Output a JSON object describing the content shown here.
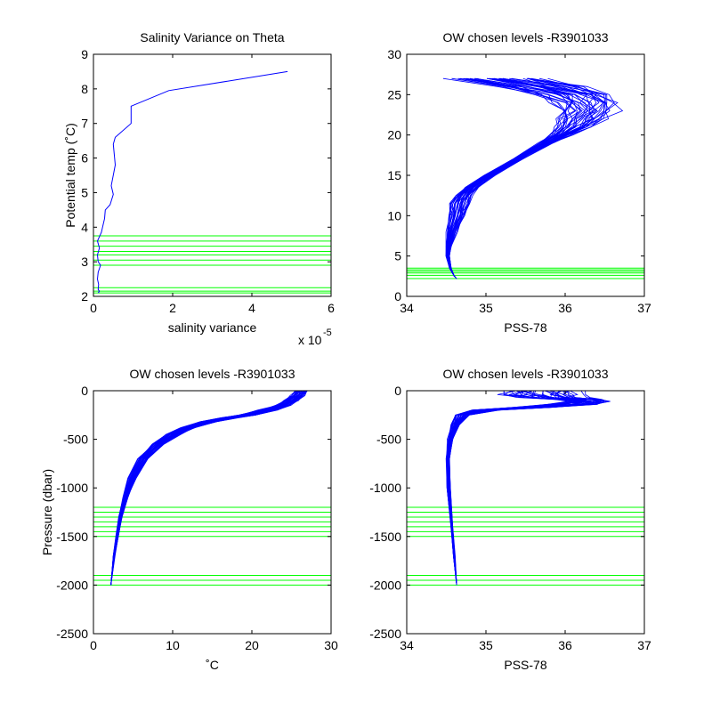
{
  "figure": {
    "background": "#ffffff"
  },
  "colors": {
    "profile": "#0000ff",
    "levels": "#00ff00",
    "axes": "#000000"
  },
  "chart_data": [
    {
      "id": "p1",
      "type": "line",
      "title": "Salinity Variance on Theta",
      "xlabel": "salinity variance",
      "ylabel": "Potential temp (˚C)",
      "xlim": [
        0,
        6
      ],
      "ylim": [
        2,
        9
      ],
      "xticks": [
        0,
        2,
        4,
        6
      ],
      "yticks": [
        2,
        3,
        4,
        5,
        6,
        7,
        8,
        9
      ],
      "xtick_labels": [
        "0",
        "2",
        "4",
        "6"
      ],
      "ytick_labels": [
        "2",
        "3",
        "4",
        "5",
        "6",
        "7",
        "8",
        "9"
      ],
      "x_multiplier": {
        "base": "x 10",
        "exponent": "-5"
      },
      "grid": false,
      "level_lines": [
        2.1,
        2.15,
        2.25,
        2.9,
        3.05,
        3.2,
        3.3,
        3.45,
        3.6,
        3.75
      ],
      "profile": {
        "x": [
          4.9,
          1.9,
          0.95,
          0.95,
          0.55,
          0.5,
          0.55,
          0.45,
          0.5,
          0.42,
          0.3,
          0.28,
          0.24,
          0.2,
          0.1,
          0.15,
          0.1,
          0.12,
          0.18,
          0.12,
          0.1,
          0.13,
          0.12,
          0.15,
          0.12
        ],
        "y": [
          8.5,
          7.95,
          7.5,
          7.0,
          6.6,
          6.4,
          5.8,
          5.2,
          4.95,
          4.65,
          4.5,
          4.25,
          4.05,
          3.85,
          3.6,
          3.4,
          3.2,
          3.0,
          2.9,
          2.7,
          2.5,
          2.35,
          2.2,
          2.15,
          2.1
        ]
      }
    },
    {
      "id": "p2",
      "type": "line",
      "title": "OW chosen levels -R3901033",
      "xlabel": "PSS-78",
      "ylabel": "",
      "xlim": [
        34,
        37
      ],
      "ylim": [
        0,
        30
      ],
      "xticks": [
        34,
        35,
        36,
        37
      ],
      "yticks": [
        0,
        5,
        10,
        15,
        20,
        25,
        30
      ],
      "xtick_labels": [
        "34",
        "35",
        "36",
        "37"
      ],
      "ytick_labels": [
        "0",
        "5",
        "10",
        "15",
        "20",
        "25",
        "30"
      ],
      "grid": false,
      "level_lines": [
        2.2,
        2.6,
        2.9,
        3.1,
        3.3,
        3.5
      ],
      "profile_family": {
        "count": 36,
        "depth": [
          2.2,
          2.5,
          3.5,
          5.0,
          6.2,
          8.0,
          10.0,
          11.5,
          12.5,
          13.5,
          15.0,
          17.0,
          19.0,
          20.0,
          21.0,
          22.0,
          23.0,
          24.0,
          25.0,
          26.0,
          27.0
        ],
        "base": [
          34.63,
          34.6,
          34.55,
          34.52,
          34.53,
          34.57,
          34.63,
          34.68,
          34.72,
          34.82,
          35.05,
          35.4,
          35.75,
          35.95,
          36.1,
          36.2,
          36.28,
          36.25,
          36.1,
          35.7,
          35.15
        ],
        "spread": [
          0,
          0,
          0.01,
          0.02,
          0.03,
          0.06,
          0.1,
          0.12,
          0.1,
          0.08,
          0.06,
          0.06,
          0.08,
          0.12,
          0.2,
          0.28,
          0.35,
          0.4,
          0.45,
          0.5,
          0.55
        ]
      }
    },
    {
      "id": "p3",
      "type": "line",
      "title": "OW chosen levels -R3901033",
      "xlabel": "˚C",
      "ylabel": "Pressure (dbar)",
      "xlim": [
        0,
        30
      ],
      "ylim": [
        -2500,
        0
      ],
      "xticks": [
        0,
        10,
        20,
        30
      ],
      "yticks": [
        -2500,
        -2000,
        -1500,
        -1000,
        -500,
        0
      ],
      "xtick_labels": [
        "0",
        "10",
        "20",
        "30"
      ],
      "ytick_labels": [
        "-2500",
        "-2000",
        "-1500",
        "-1000",
        "-500",
        "0"
      ],
      "grid": false,
      "level_lines": [
        -1200,
        -1250,
        -1300,
        -1350,
        -1400,
        -1450,
        -1500,
        -1900,
        -1950,
        -2000
      ],
      "profile_family": {
        "count": 36,
        "depth": [
          -2000,
          -1700,
          -1500,
          -1300,
          -1100,
          -900,
          -700,
          -550,
          -450,
          -380,
          -320,
          -280,
          -250,
          -200,
          -150,
          -100,
          -50,
          0
        ],
        "base": [
          2.2,
          2.6,
          3.0,
          3.4,
          4.0,
          4.9,
          6.3,
          8.2,
          10.0,
          12.0,
          14.5,
          17.0,
          19.5,
          22.0,
          24.0,
          25.0,
          25.8,
          26.3
        ],
        "spread": [
          0,
          0.1,
          0.15,
          0.2,
          0.3,
          0.45,
          0.6,
          0.7,
          0.8,
          0.8,
          0.9,
          1.0,
          1.1,
          1.0,
          0.9,
          0.8,
          0.8,
          0.8
        ]
      }
    },
    {
      "id": "p4",
      "type": "line",
      "title": "OW chosen levels -R3901033",
      "xlabel": "PSS-78",
      "ylabel": "",
      "xlim": [
        34,
        37
      ],
      "ylim": [
        -2500,
        0
      ],
      "xticks": [
        34,
        35,
        36,
        37
      ],
      "yticks": [
        -2500,
        -2000,
        -1500,
        -1000,
        -500,
        0
      ],
      "xtick_labels": [
        "34",
        "35",
        "36",
        "37"
      ],
      "ytick_labels": [
        "-2500",
        "-2000",
        "-1500",
        "-1000",
        "-500",
        "0"
      ],
      "grid": false,
      "level_lines": [
        -1200,
        -1250,
        -1300,
        -1350,
        -1400,
        -1450,
        -1500,
        -1900,
        -1950,
        -2000
      ],
      "profile_family": {
        "count": 36,
        "depth": [
          -2000,
          -1700,
          -1400,
          -1000,
          -700,
          -500,
          -350,
          -250,
          -200,
          -170,
          -140,
          -110,
          -90,
          -70,
          -40,
          0
        ],
        "base": [
          34.63,
          34.6,
          34.57,
          34.53,
          34.52,
          34.55,
          34.62,
          34.7,
          35.0,
          35.6,
          36.1,
          36.3,
          36.15,
          35.8,
          35.7,
          35.7
        ],
        "spread": [
          0,
          0.01,
          0.01,
          0.02,
          0.02,
          0.03,
          0.05,
          0.08,
          0.15,
          0.25,
          0.3,
          0.25,
          0.3,
          0.4,
          0.5,
          0.5
        ]
      }
    }
  ]
}
